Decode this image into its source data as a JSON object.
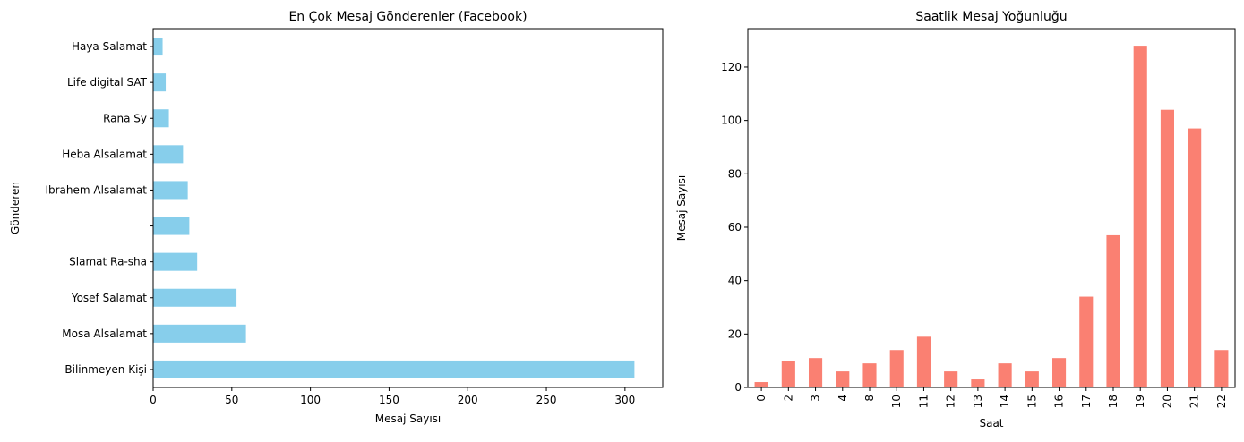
{
  "chart_data": [
    {
      "type": "bar",
      "orientation": "horizontal",
      "title": "En Çok Mesaj Gönderenler (Facebook)",
      "xlabel": "Mesaj Sayısı",
      "ylabel": "Gönderen",
      "categories": [
        "Bilinmeyen Kişi",
        "Mosa Alsalamat",
        "Yosef Salamat",
        "Slamat Ra-sha",
        "",
        "Ibrahem Alsalamat",
        "Heba Alsalamat",
        "Rana Sy",
        "Life digital SAT",
        "Haya Salamat"
      ],
      "values": [
        306,
        59,
        53,
        28,
        23,
        22,
        19,
        10,
        8,
        6
      ],
      "xlim": [
        0,
        324
      ],
      "xticks": [
        0,
        50,
        100,
        150,
        200,
        250,
        300
      ],
      "color": "#87ceeb",
      "grid": false
    },
    {
      "type": "bar",
      "orientation": "vertical",
      "title": "Saatlik Mesaj Yoğunluğu",
      "xlabel": "Saat",
      "ylabel": "Mesaj Sayısı",
      "categories": [
        "0",
        "2",
        "3",
        "4",
        "8",
        "10",
        "11",
        "12",
        "13",
        "14",
        "15",
        "16",
        "17",
        "18",
        "19",
        "20",
        "21",
        "22"
      ],
      "values": [
        2,
        10,
        11,
        6,
        9,
        14,
        19,
        6,
        3,
        9,
        6,
        11,
        34,
        57,
        128,
        104,
        97,
        14
      ],
      "ylim": [
        0,
        134.4
      ],
      "yticks": [
        0,
        20,
        40,
        60,
        80,
        100,
        120
      ],
      "color": "#fa8072",
      "grid": false
    }
  ]
}
